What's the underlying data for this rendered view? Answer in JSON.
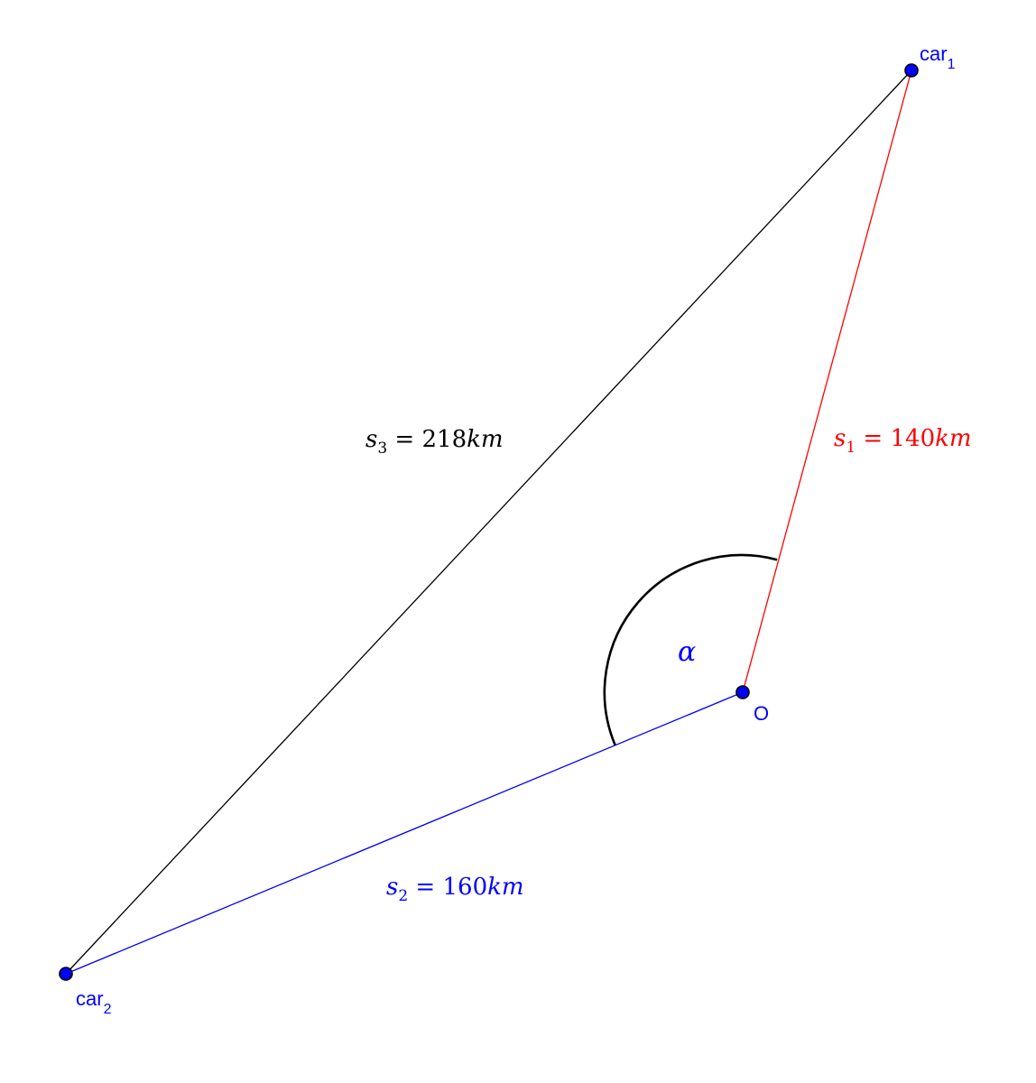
{
  "points": {
    "car1": {
      "name": "car",
      "subscript": "1"
    },
    "car2": {
      "name": "car",
      "subscript": "2"
    },
    "o": {
      "name": "O"
    }
  },
  "segments": {
    "s1": {
      "symbol": "s",
      "subscript": "1",
      "equals": " = ",
      "value": "140",
      "unit": "km"
    },
    "s2": {
      "symbol": "s",
      "subscript": "2",
      "equals": " = ",
      "value": "160",
      "unit": "km"
    },
    "s3": {
      "symbol": "s",
      "subscript": "3",
      "equals": " = ",
      "value": "218",
      "unit": "km"
    }
  },
  "angle": {
    "label": "α"
  },
  "colors": {
    "s1": "#ff0000",
    "s2": "#0000ff",
    "s3": "#000000",
    "point_fill": "#0000ff",
    "point_label": "#0000ff"
  }
}
